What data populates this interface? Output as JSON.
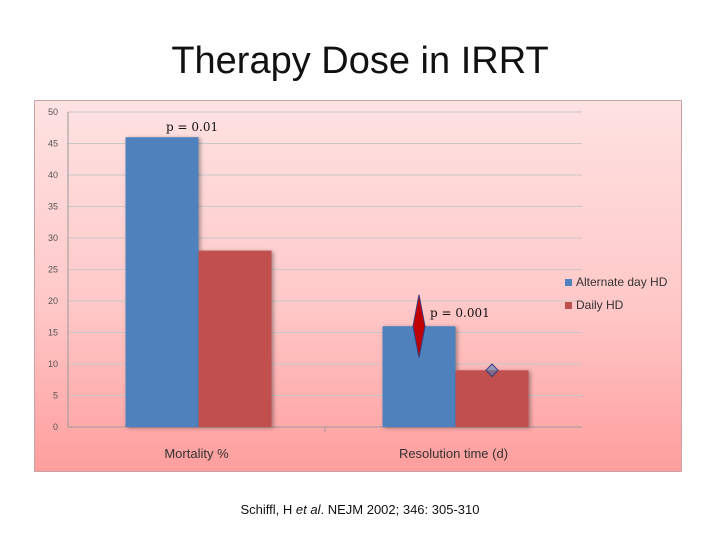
{
  "slide": {
    "title": "Therapy Dose in IRRT",
    "citation": {
      "author": "Schiffl, H",
      "etal": "et al",
      "rest": ". NEJM 2002; 346: 305-310"
    }
  },
  "chart_data": {
    "type": "bar",
    "title": "",
    "xlabel": "",
    "ylabel": "",
    "categories": [
      "Mortality %",
      "Resolution time (d)"
    ],
    "series": [
      {
        "name": "Alternate day HD",
        "values": [
          46,
          16
        ],
        "color": "#4f81bd"
      },
      {
        "name": "Daily HD",
        "values": [
          28,
          9
        ],
        "color": "#c0504d"
      }
    ],
    "ylim": [
      0,
      50
    ],
    "yticks": [
      0,
      5,
      10,
      15,
      20,
      25,
      30,
      35,
      40,
      45,
      50
    ],
    "grid": true,
    "legend_position": "right",
    "annotations": [
      {
        "text": "p = 0.01",
        "category": "Mortality %"
      },
      {
        "text": "p = 0.001",
        "category": "Resolution time (d)"
      }
    ],
    "markers": [
      {
        "category": "Resolution time (d)",
        "series": "Alternate day HD",
        "value": 16,
        "low": 11,
        "high": 21,
        "color": "#c00000"
      },
      {
        "category": "Resolution time (d)",
        "series": "Daily HD",
        "value": 9,
        "low": 8,
        "high": 10,
        "color": "#4f81bd"
      }
    ]
  }
}
